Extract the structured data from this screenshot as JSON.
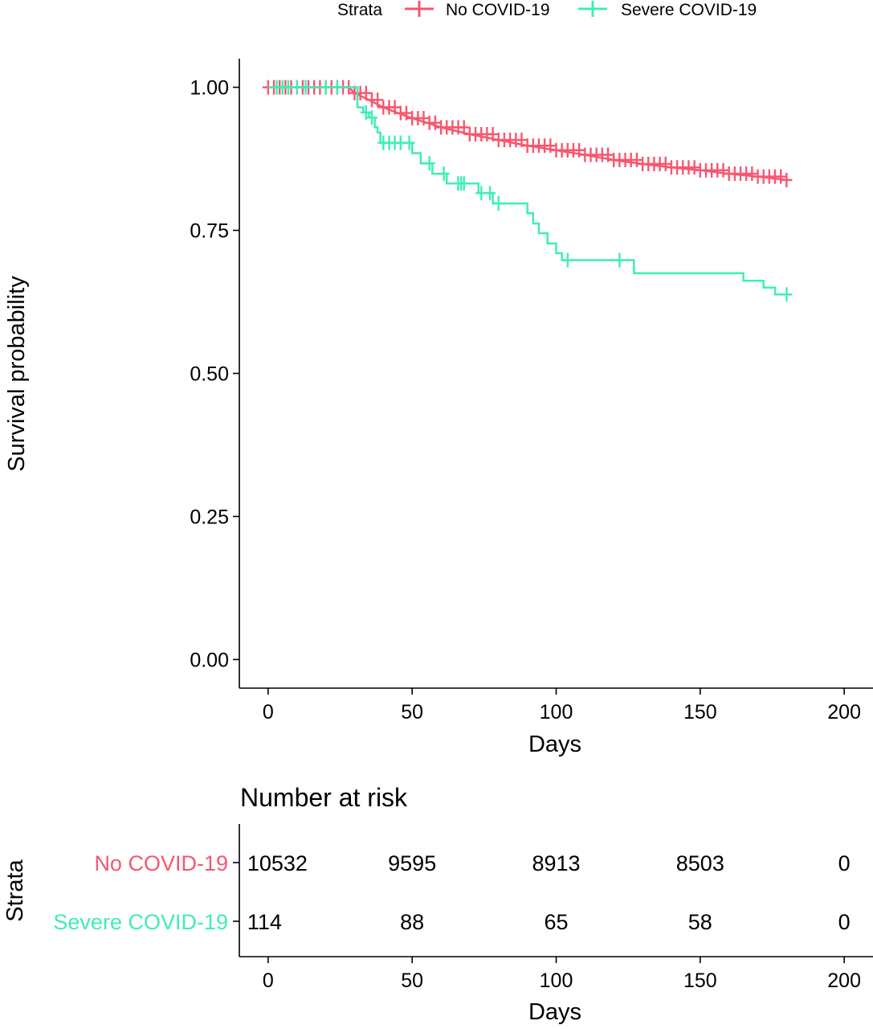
{
  "chart_data": [
    {
      "type": "line",
      "subtype": "kaplan-meier",
      "title": "",
      "xlabel": "Days",
      "ylabel": "Survival probability",
      "xlim": [
        -10,
        210
      ],
      "ylim": [
        -0.05,
        1.05
      ],
      "x_ticks": [
        0,
        50,
        100,
        150,
        200
      ],
      "x_tick_labels": [
        "0",
        "50",
        "100",
        "150",
        "200"
      ],
      "y_ticks": [
        0,
        0.25,
        0.5,
        0.75,
        1.0
      ],
      "y_tick_labels": [
        "0.00",
        "0.25",
        "0.50",
        "0.75",
        "1.00"
      ],
      "grid": false,
      "legend": {
        "title": "Strata",
        "position": "top",
        "entries": [
          "No COVID-19",
          "Severe COVID-19"
        ]
      },
      "series": [
        {
          "name": "No COVID-19",
          "color": "#F8566E",
          "censor_marker": "+",
          "points": [
            [
              0,
              1.0
            ],
            [
              28,
              1.0
            ],
            [
              30,
              0.99
            ],
            [
              35,
              0.978
            ],
            [
              40,
              0.965
            ],
            [
              45,
              0.955
            ],
            [
              50,
              0.946
            ],
            [
              55,
              0.938
            ],
            [
              60,
              0.93
            ],
            [
              70,
              0.918
            ],
            [
              80,
              0.908
            ],
            [
              90,
              0.898
            ],
            [
              100,
              0.89
            ],
            [
              110,
              0.882
            ],
            [
              120,
              0.873
            ],
            [
              130,
              0.866
            ],
            [
              140,
              0.86
            ],
            [
              150,
              0.855
            ],
            [
              160,
              0.849
            ],
            [
              170,
              0.844
            ],
            [
              180,
              0.838
            ]
          ],
          "censor_times": [
            0,
            2,
            4,
            6,
            8,
            10,
            12,
            14,
            16,
            18,
            20,
            22,
            24,
            26,
            28,
            30,
            32,
            34,
            36,
            38,
            40,
            42,
            44,
            46,
            48,
            50,
            52,
            54,
            56,
            58,
            60,
            62,
            64,
            66,
            68,
            70,
            72,
            74,
            76,
            78,
            80,
            82,
            84,
            86,
            88,
            90,
            92,
            94,
            96,
            98,
            100,
            102,
            104,
            106,
            108,
            110,
            112,
            114,
            116,
            118,
            120,
            122,
            124,
            126,
            128,
            130,
            132,
            134,
            136,
            138,
            140,
            142,
            144,
            146,
            148,
            150,
            152,
            154,
            156,
            158,
            160,
            162,
            164,
            166,
            168,
            170,
            172,
            174,
            176,
            178,
            180
          ]
        },
        {
          "name": "Severe COVID-19",
          "color": "#3FEDB9",
          "censor_marker": "+",
          "points": [
            [
              0,
              1.0
            ],
            [
              31,
              1.0
            ],
            [
              31,
              0.965
            ],
            [
              33,
              0.965
            ],
            [
              33,
              0.956
            ],
            [
              35,
              0.956
            ],
            [
              35,
              0.947
            ],
            [
              37,
              0.947
            ],
            [
              37,
              0.93
            ],
            [
              38,
              0.93
            ],
            [
              38,
              0.921
            ],
            [
              39,
              0.921
            ],
            [
              39,
              0.903
            ],
            [
              50,
              0.903
            ],
            [
              50,
              0.885
            ],
            [
              53,
              0.885
            ],
            [
              53,
              0.867
            ],
            [
              57,
              0.867
            ],
            [
              57,
              0.849
            ],
            [
              62,
              0.849
            ],
            [
              62,
              0.832
            ],
            [
              73,
              0.832
            ],
            [
              73,
              0.815
            ],
            [
              78,
              0.815
            ],
            [
              78,
              0.797
            ],
            [
              90,
              0.797
            ],
            [
              90,
              0.78
            ],
            [
              92,
              0.78
            ],
            [
              92,
              0.762
            ],
            [
              94,
              0.762
            ],
            [
              94,
              0.745
            ],
            [
              97,
              0.745
            ],
            [
              97,
              0.727
            ],
            [
              100,
              0.727
            ],
            [
              100,
              0.71
            ],
            [
              102,
              0.71
            ],
            [
              102,
              0.698
            ],
            [
              127,
              0.698
            ],
            [
              127,
              0.675
            ],
            [
              165,
              0.675
            ],
            [
              165,
              0.662
            ],
            [
              172,
              0.662
            ],
            [
              172,
              0.65
            ],
            [
              176,
              0.65
            ],
            [
              176,
              0.638
            ],
            [
              180,
              0.638
            ]
          ],
          "censor_times": [
            3,
            5,
            7,
            10,
            13,
            20,
            24,
            34,
            36,
            40,
            42,
            44,
            46,
            49,
            56,
            61,
            66,
            67,
            68,
            74,
            77,
            80,
            104,
            122,
            180
          ]
        }
      ]
    },
    {
      "type": "table",
      "title": "Number at risk",
      "xlabel": "Days",
      "ylabel": "Strata",
      "xlim": [
        -10,
        210
      ],
      "x_ticks": [
        0,
        50,
        100,
        150,
        200
      ],
      "x_tick_labels": [
        "0",
        "50",
        "100",
        "150",
        "200"
      ],
      "rows": [
        {
          "label": "No COVID-19",
          "color": "#F8566E",
          "values": [
            10532,
            9595,
            8913,
            8503,
            0
          ]
        },
        {
          "label": "Severe COVID-19",
          "color": "#3FEDB9",
          "values": [
            114,
            88,
            65,
            58,
            0
          ]
        }
      ]
    }
  ]
}
